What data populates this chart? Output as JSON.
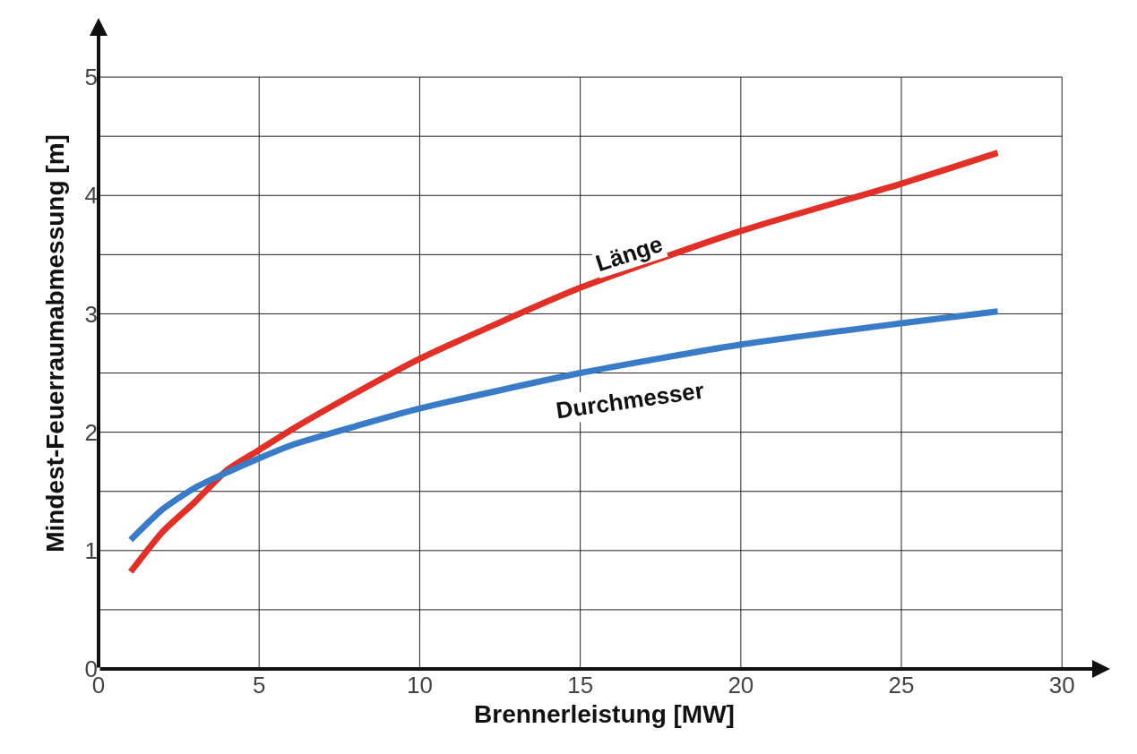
{
  "chart_data": {
    "type": "line",
    "xlabel": "Brennerleistung [MW]",
    "ylabel": "Mindest-Feuerraumabmessung [m]",
    "xlim": [
      0,
      31.5
    ],
    "ylim": [
      0,
      5.5
    ],
    "xticks": [
      0,
      5,
      10,
      15,
      20,
      25,
      30
    ],
    "yticks": [
      0,
      {
        "value": 0.5,
        "label": null
      },
      1,
      {
        "value": 1.5,
        "label": null
      },
      2,
      {
        "value": 2.5,
        "label": null
      },
      3,
      {
        "value": 3.5,
        "label": null
      },
      4,
      {
        "value": 4.5,
        "label": null
      },
      5
    ],
    "grid": true,
    "legend": false,
    "marker": "none",
    "line_style": "solid",
    "x": [
      1,
      2,
      3,
      4,
      5,
      6,
      8,
      10,
      15,
      20,
      25,
      28
    ],
    "series": [
      {
        "name": "Länge",
        "color": "#e03027",
        "values": [
          0.82,
          1.16,
          1.41,
          1.68,
          1.85,
          2.02,
          2.33,
          2.62,
          3.22,
          3.7,
          4.1,
          4.36
        ]
      },
      {
        "name": "Durchmesser",
        "color": "#3a7bc8",
        "values": [
          1.09,
          1.35,
          1.53,
          1.66,
          1.78,
          1.89,
          2.05,
          2.2,
          2.5,
          2.74,
          2.92,
          3.02
        ]
      }
    ]
  }
}
